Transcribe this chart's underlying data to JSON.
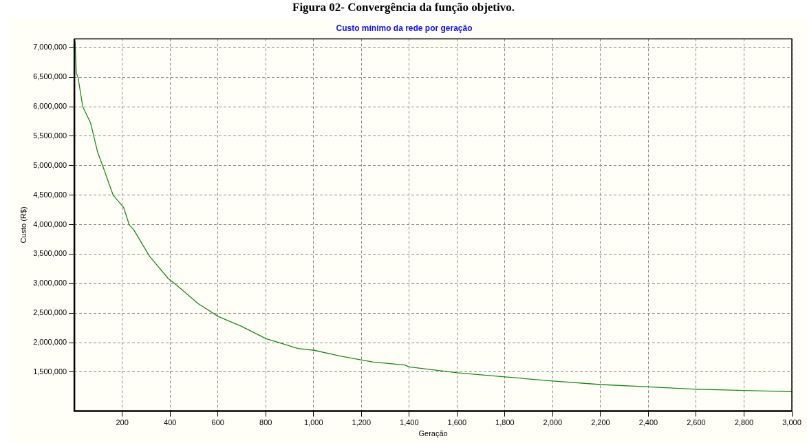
{
  "chart_data": {
    "type": "line",
    "title": "Custo mínimo da rede por geração",
    "xlabel": "Geração",
    "ylabel": "Custo (R$)",
    "annotations": [
      "Figura 02- Convergência da função objetivo."
    ],
    "series": [
      {
        "color": "#168a16",
        "x": [
          1,
          3,
          8,
          15,
          35,
          68,
          97,
          118,
          162,
          206,
          229,
          247,
          315,
          394,
          429,
          518,
          603,
          697,
          800,
          935,
          1003,
          1115,
          1250,
          1382,
          1400,
          1600,
          1800,
          2000,
          2200,
          2400,
          2600,
          2800,
          3000
        ],
        "values": [
          7100000,
          7100000,
          6570000,
          6500000,
          6000000,
          5720000,
          5230000,
          5000000,
          4500000,
          4290000,
          4000000,
          3920000,
          3460000,
          3080000,
          2970000,
          2660000,
          2440000,
          2280000,
          2070000,
          1900000,
          1870000,
          1770000,
          1670000,
          1620000,
          1590000,
          1490000,
          1420000,
          1350000,
          1290000,
          1250000,
          1210000,
          1190000,
          1170000
        ]
      }
    ],
    "xlim": [
      0,
      3000
    ],
    "xticks": [
      200,
      400,
      600,
      800,
      {
        "value": 1000,
        "label": "1,000"
      },
      {
        "value": 1200,
        "label": "1,200"
      },
      {
        "value": 1400,
        "label": "1,400"
      },
      {
        "value": 1600,
        "label": "1,600"
      },
      {
        "value": 1800,
        "label": "1,800"
      },
      {
        "value": 2000,
        "label": "2,000"
      },
      {
        "value": 2200,
        "label": "2,200"
      },
      {
        "value": 2400,
        "label": "2,400"
      },
      {
        "value": 2600,
        "label": "2,600"
      },
      {
        "value": 2800,
        "label": "2,800"
      },
      {
        "value": 3000,
        "label": "3,000"
      }
    ],
    "ylim": [
      840000,
      7150000
    ],
    "yticks": [
      {
        "value": 1500000,
        "label": "1,500,000"
      },
      {
        "value": 2000000,
        "label": "2,000,000"
      },
      {
        "value": 2500000,
        "label": "2,500,000"
      },
      {
        "value": 3000000,
        "label": "3,000,000"
      },
      {
        "value": 3500000,
        "label": "3,500,000"
      },
      {
        "value": 4000000,
        "label": "4,000,000"
      },
      {
        "value": 4500000,
        "label": "4,500,000"
      },
      {
        "value": 5000000,
        "label": "5,000,000"
      },
      {
        "value": 5500000,
        "label": "5,500,000"
      },
      {
        "value": 6000000,
        "label": "6,000,000"
      },
      {
        "value": 6500000,
        "label": "6,500,000"
      },
      {
        "value": 7000000,
        "label": "7,000,000"
      }
    ],
    "grid": true,
    "legend": false,
    "marker": "none",
    "line_style": "solid"
  }
}
